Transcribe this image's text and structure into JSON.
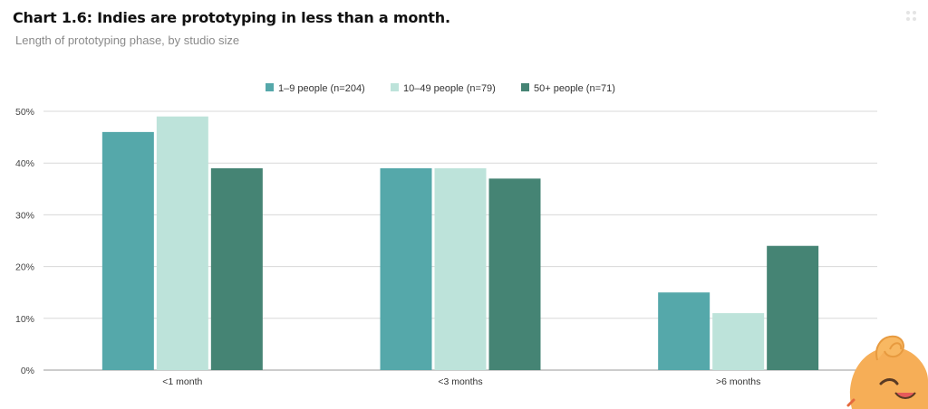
{
  "title": "Chart 1.6: Indies are prototyping in less than a month.",
  "subtitle": "Length of prototyping phase, by studio size",
  "chart_data": {
    "type": "bar",
    "categories": [
      "<1 month",
      "<3 months",
      ">6 months"
    ],
    "series": [
      {
        "name": "1–9 people (n=204)",
        "color": "#55a8aa",
        "values": [
          46,
          39,
          15
        ]
      },
      {
        "name": "10–49 people (n=79)",
        "color": "#bde3da",
        "values": [
          49,
          39,
          11
        ]
      },
      {
        "name": "50+ people (n=71)",
        "color": "#458474",
        "values": [
          39,
          37,
          24
        ]
      }
    ],
    "ylim": [
      0,
      50
    ],
    "yticks": [
      "0%",
      "10%",
      "20%",
      "30%",
      "40%",
      "50%"
    ],
    "grid": true,
    "legend": "top-center",
    "xlabel": "",
    "ylabel": ""
  }
}
